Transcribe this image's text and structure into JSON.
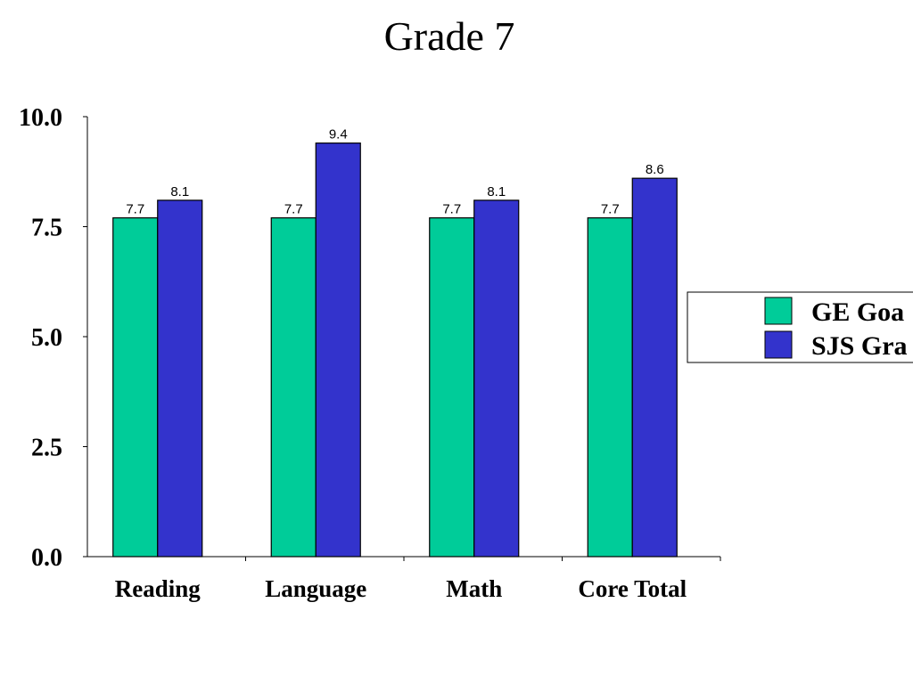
{
  "chart_data": {
    "type": "bar",
    "title": "Grade 7",
    "xlabel": "",
    "ylabel": "",
    "categories": [
      "Reading",
      "Language",
      "Math",
      "Core Total"
    ],
    "series": [
      {
        "name": "GE Goal",
        "values": [
          7.7,
          7.7,
          7.7,
          7.7
        ],
        "color": "#00CC99",
        "labels": [
          "7.7",
          "7.7",
          "7.7",
          "7.7"
        ]
      },
      {
        "name": "SJS Grade",
        "values": [
          8.1,
          9.4,
          8.1,
          8.6
        ],
        "color": "#3333CC",
        "labels": [
          "8.1",
          "9.4",
          "8.1",
          "8.6"
        ]
      }
    ],
    "ylim": [
      0,
      10
    ],
    "yticks": [
      0,
      2.5,
      5,
      7.5,
      10
    ],
    "ytick_labels": [
      "0.0",
      "2.5",
      "5.0",
      "7.5",
      "10.0"
    ],
    "grid": false,
    "legend_position": "right",
    "legend_labels_visible": [
      "GE Goa",
      "SJS Gra"
    ]
  }
}
